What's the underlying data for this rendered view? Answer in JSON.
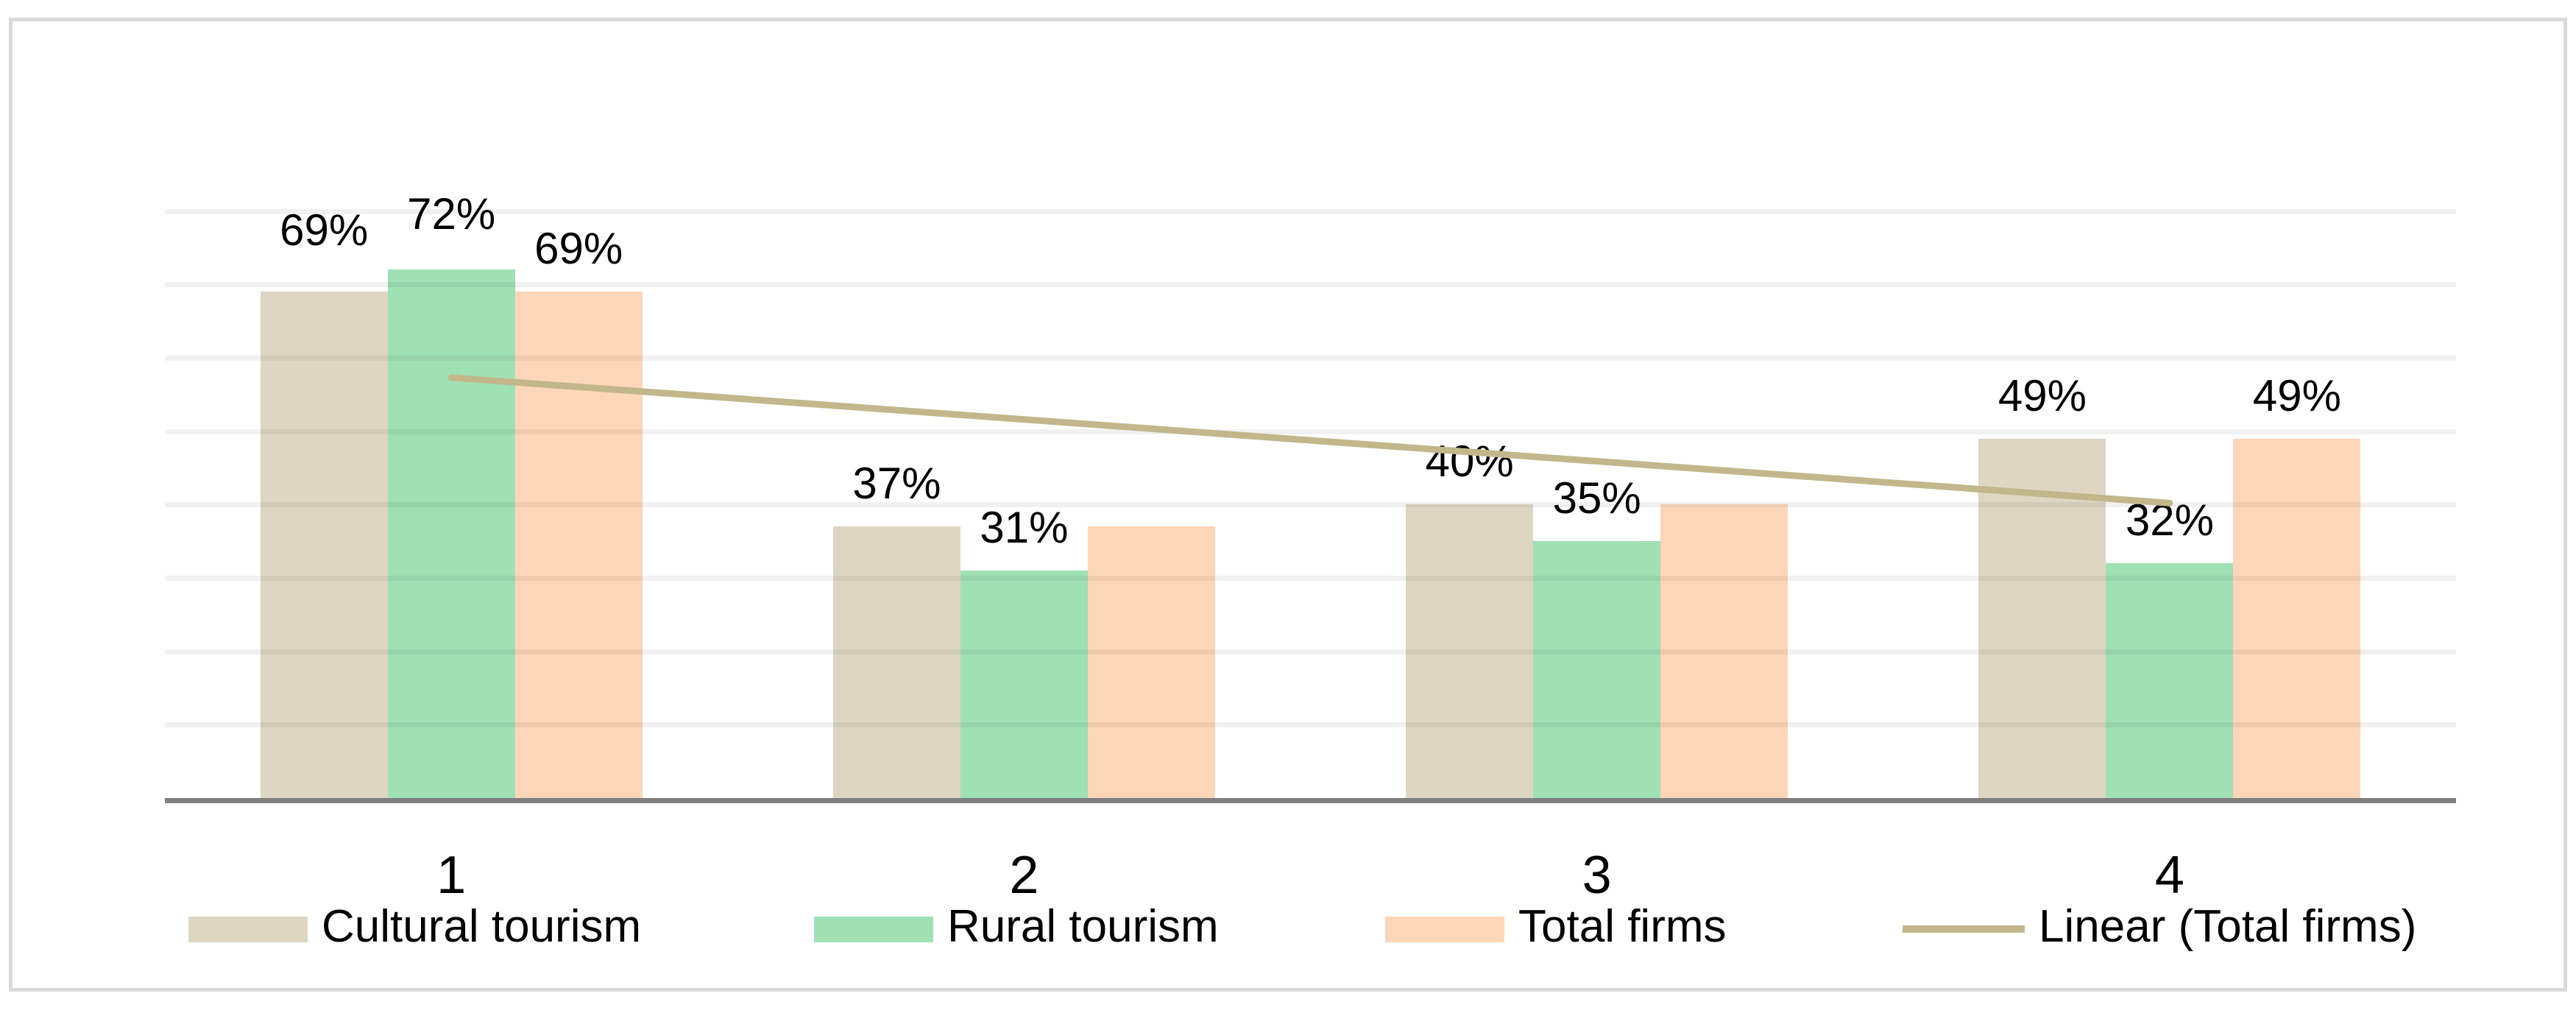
{
  "page": {
    "background": "#FFFFFF"
  },
  "chart_data": {
    "type": "bar",
    "title": "",
    "xlabel": "",
    "ylabel": "",
    "categories": [
      "1",
      "2",
      "3",
      "4"
    ],
    "series": [
      {
        "name": "Cultural tourism",
        "color": "#DED6C3",
        "values": [
          69,
          37,
          40,
          49
        ],
        "data_labels": [
          "69%",
          "37%",
          "40%",
          "49%"
        ],
        "label_dy": [
          -25,
          0,
          0,
          0
        ]
      },
      {
        "name": "Rural tourism",
        "color": "#9FE0B5",
        "values": [
          72,
          31,
          35,
          32
        ],
        "data_labels": [
          "72%",
          "31%",
          "35%",
          "32%"
        ],
        "label_dy": [
          -17,
          0,
          0,
          0
        ]
      },
      {
        "name": "Total firms",
        "color": "#FCD6B8",
        "values": [
          69,
          37,
          40,
          49
        ],
        "data_labels": [
          "69%",
          "",
          "",
          "49%"
        ],
        "label_dy": [
          0,
          0,
          0,
          0
        ]
      }
    ],
    "trendline": {
      "name": "Linear (Total firms)",
      "on_series": "Total firms",
      "type": "linear",
      "color": "#C2B78B",
      "endpoint_values_pct": [
        57.3,
        40.2
      ]
    },
    "legend": {
      "position": "bottom",
      "entries": [
        {
          "label": "Cultural tourism",
          "swatch": "box",
          "color": "#DED6C3"
        },
        {
          "label": "Rural tourism",
          "swatch": "box",
          "color": "#9FE0B5"
        },
        {
          "label": "Total firms",
          "swatch": "box",
          "color": "#FCD6B8"
        },
        {
          "label": "Linear (Total firms)",
          "swatch": "line",
          "color": "#C2B78B"
        }
      ]
    },
    "ylim": [
      0,
      80
    ],
    "gridline_step_pct": 10,
    "grid": true,
    "y_axis_tick_labels_visible": false,
    "value_unit": "%",
    "frame_border_color": "#D9D9D9",
    "axis_line_color": "#7F7F7F",
    "gridline_color": "#F2F2F2",
    "label_text_color": "#000000"
  }
}
